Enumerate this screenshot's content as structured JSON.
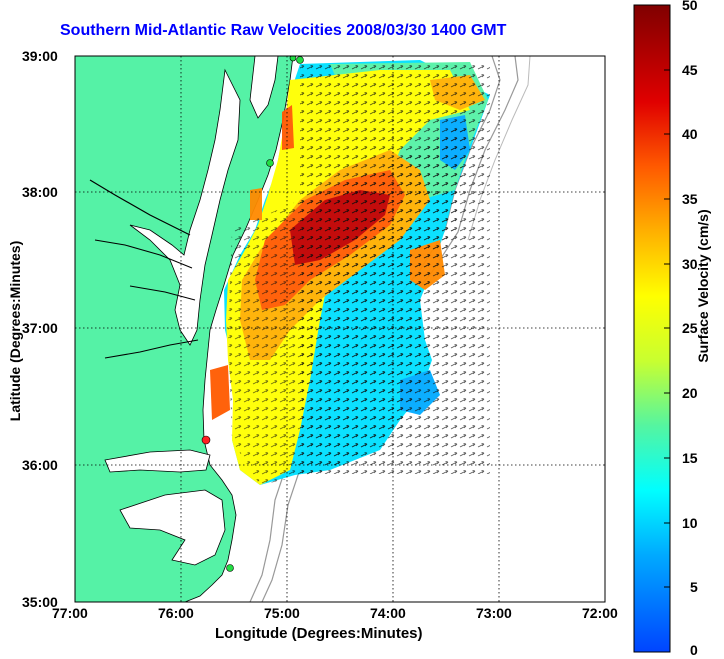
{
  "title": "Southern Mid-Atlantic Raw Velocities 2008/03/30 1400 GMT",
  "x_label": "Longitude (Degrees:Minutes)",
  "y_label": "Latitude (Degrees:Minutes)",
  "x_ticks": [
    "77:00",
    "76:00",
    "75:00",
    "74:00",
    "73:00",
    "72:00"
  ],
  "y_ticks": [
    "39:00",
    "38:00",
    "37:00",
    "36:00",
    "35:00"
  ],
  "colorbar": {
    "label": "Surface Velocity (cm/s)",
    "ticks": [
      "50",
      "45",
      "40",
      "35",
      "30",
      "25",
      "20",
      "15",
      "10",
      "5",
      "0"
    ]
  },
  "colors": {
    "land": "#55f2a6",
    "title": "#0000ff"
  }
}
